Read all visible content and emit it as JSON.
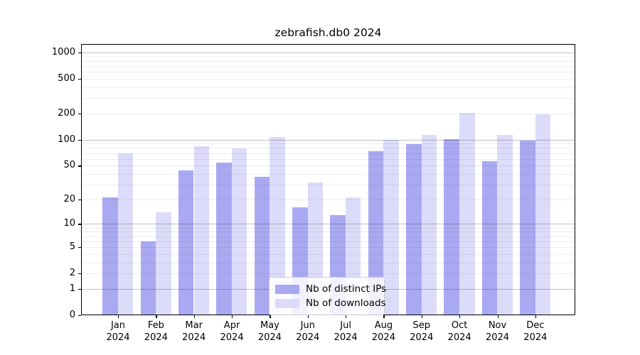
{
  "chart_data": {
    "type": "bar",
    "title": "zebrafish.db0 2024",
    "categories": [
      "Jan 2024",
      "Feb 2024",
      "Mar 2024",
      "Apr 2024",
      "May 2024",
      "Jun 2024",
      "Jul 2024",
      "Aug 2024",
      "Sep 2024",
      "Oct 2024",
      "Nov 2024",
      "Dec 2024"
    ],
    "series": [
      {
        "name": "Nb of distinct IPs",
        "color": "#a9a9f2",
        "values": [
          21,
          6,
          44,
          54,
          37,
          16,
          13,
          74,
          89,
          101,
          56,
          97
        ]
      },
      {
        "name": "Nb of downloads",
        "color": "#dcdcfa",
        "values": [
          70,
          14,
          84,
          80,
          107,
          32,
          21,
          100,
          113,
          202,
          114,
          196
        ]
      }
    ],
    "xlabel": "",
    "ylabel": "",
    "yscale": "log10(1+x)",
    "yticks": [
      0,
      1,
      2,
      5,
      10,
      20,
      50,
      100,
      200,
      500,
      1000
    ],
    "ylim": [
      0,
      1250
    ],
    "grid": "horizontal, major lines at 1/10/100/1000, faint minor lines",
    "legend_position": "inside plot, lower middle"
  },
  "colors": {
    "distinct_ips_bar": "#a9a9f2",
    "downloads_bar": "#dcdcfa",
    "grid_major": "#c2c2c2",
    "grid_minor": "#efefef",
    "axis": "#000000",
    "legend_border": "#cccccc"
  }
}
